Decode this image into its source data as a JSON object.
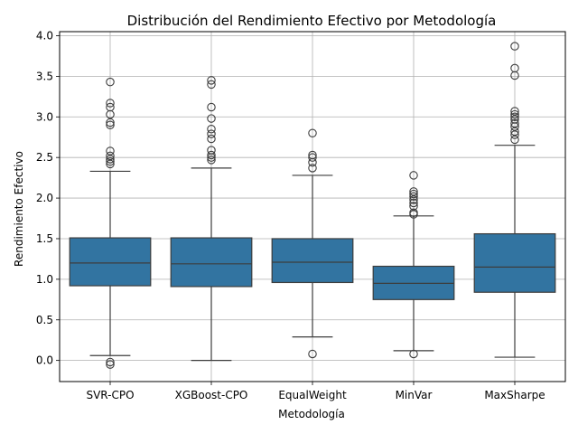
{
  "chart_data": {
    "type": "box",
    "title": "Distribución del Rendimiento Efectivo por Metodología",
    "xlabel": "Metodología",
    "ylabel": "Rendimiento Efectivo",
    "ylim": [
      -0.26,
      4.05
    ],
    "yticks": [
      0.0,
      0.5,
      1.0,
      1.5,
      2.0,
      2.5,
      3.0,
      3.5,
      4.0
    ],
    "ytick_labels": [
      "0.0",
      "0.5",
      "1.0",
      "1.5",
      "2.0",
      "2.5",
      "3.0",
      "3.5",
      "4.0"
    ],
    "grid": true,
    "colors": {
      "box": "#3274a1",
      "line": "#3d3d3d"
    },
    "categories": [
      "SVR-CPO",
      "XGBoost-CPO",
      "EqualWeight",
      "MinVar",
      "MaxSharpe"
    ],
    "boxes": [
      {
        "whisker_low": 0.06,
        "q1": 0.92,
        "median": 1.2,
        "q3": 1.51,
        "whisker_high": 2.33,
        "outliers": [
          -0.05,
          -0.02,
          2.42,
          2.45,
          2.48,
          2.52,
          2.58,
          2.9,
          2.93,
          3.03,
          3.12,
          3.17,
          3.43
        ]
      },
      {
        "whisker_low": 0.0,
        "q1": 0.91,
        "median": 1.19,
        "q3": 1.51,
        "whisker_high": 2.37,
        "outliers": [
          2.47,
          2.5,
          2.53,
          2.59,
          2.73,
          2.79,
          2.85,
          2.98,
          3.12,
          3.4,
          3.45
        ]
      },
      {
        "whisker_low": 0.29,
        "q1": 0.96,
        "median": 1.21,
        "q3": 1.5,
        "whisker_high": 2.28,
        "outliers": [
          0.08,
          2.37,
          2.44,
          2.5,
          2.53,
          2.8
        ]
      },
      {
        "whisker_low": 0.12,
        "q1": 0.75,
        "median": 0.95,
        "q3": 1.16,
        "whisker_high": 1.78,
        "outliers": [
          0.08,
          1.8,
          1.82,
          1.9,
          1.94,
          1.98,
          2.02,
          2.05,
          2.08,
          2.28
        ]
      },
      {
        "whisker_low": 0.04,
        "q1": 0.84,
        "median": 1.15,
        "q3": 1.56,
        "whisker_high": 2.65,
        "outliers": [
          2.72,
          2.78,
          2.82,
          2.88,
          2.92,
          2.97,
          3.0,
          3.03,
          3.07,
          3.51,
          3.6,
          3.87
        ]
      }
    ]
  }
}
